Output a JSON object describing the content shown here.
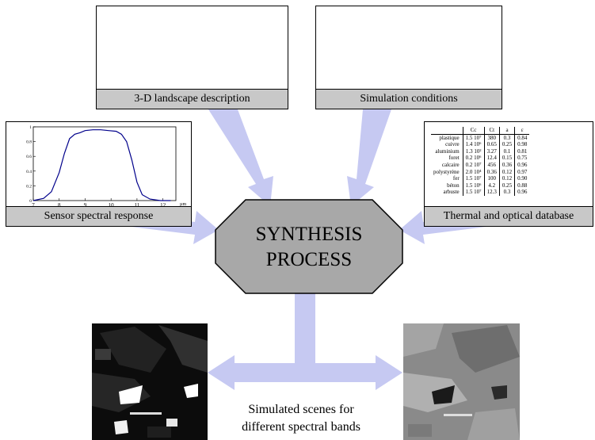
{
  "boxes": {
    "landscape": {
      "caption": "3-D landscape description"
    },
    "conditions": {
      "caption": "Simulation conditions"
    },
    "sensor": {
      "caption": "Sensor spectral response"
    },
    "database": {
      "caption": "Thermal and optical database"
    }
  },
  "process": {
    "line1": "SYNTHESIS",
    "line2": "PROCESS"
  },
  "scenes": {
    "line1": "Simulated scenes for",
    "line2": "different spectral bands"
  },
  "colors": {
    "arrow": "#c6c9f2",
    "octagon": "#a8a8a8",
    "caption_bg": "#c8c8c8",
    "curve": "#00008b"
  },
  "chart_data": {
    "type": "line",
    "title": "",
    "xlabel": "",
    "ylabel": "",
    "x_unit": "µm",
    "xlim": [
      7,
      12.5
    ],
    "ylim": [
      0,
      1
    ],
    "xticks": [
      "7",
      "8",
      "9",
      "10",
      "11",
      "12"
    ],
    "yticks": [
      "0",
      "0.2",
      "0.4",
      "0.6",
      "0.8",
      "1"
    ],
    "x": [
      7.0,
      7.4,
      7.7,
      8.0,
      8.2,
      8.4,
      8.6,
      8.8,
      9.0,
      9.3,
      9.6,
      9.9,
      10.2,
      10.4,
      10.6,
      10.8,
      11.0,
      11.2,
      11.5,
      11.9,
      12.3
    ],
    "y": [
      0.0,
      0.03,
      0.12,
      0.38,
      0.64,
      0.84,
      0.9,
      0.92,
      0.95,
      0.96,
      0.96,
      0.95,
      0.94,
      0.9,
      0.8,
      0.55,
      0.25,
      0.08,
      0.02,
      0.0,
      0.0
    ]
  },
  "database_table": {
    "headers": [
      "Cc",
      "Ct",
      "a",
      "ε"
    ],
    "rows": [
      {
        "material": "plastique",
        "cc": "1.5 10⁷",
        "ct": "380",
        "a": "0.3",
        "e": "0.84"
      },
      {
        "material": "cuivre",
        "cc": "1.4 10⁶",
        "ct": "0.65",
        "a": "0.25",
        "e": "0.98"
      },
      {
        "material": "aluminium",
        "cc": "1.3 10²",
        "ct": "3.27",
        "a": "0.1",
        "e": "0.81"
      },
      {
        "material": "foret",
        "cc": "0.2 10⁶",
        "ct": "12.4",
        "a": "0.15",
        "e": "0.75"
      },
      {
        "material": "calcaire",
        "cc": "0.2 10⁷",
        "ct": "456",
        "a": "0.36",
        "e": "0.96"
      },
      {
        "material": "polystyrène",
        "cc": "2.0 10⁴",
        "ct": "0.36",
        "a": "0.12",
        "e": "0.97"
      },
      {
        "material": "fer",
        "cc": "1.5 10⁷",
        "ct": "100",
        "a": "0.12",
        "e": "0.90"
      },
      {
        "material": "béton",
        "cc": "1.5 10⁶",
        "ct": "4.2",
        "a": "0.25",
        "e": "0.88"
      },
      {
        "material": "arbuste",
        "cc": "1.5 10⁷",
        "ct": "12.3",
        "a": "0.3",
        "e": "0.96"
      }
    ]
  }
}
